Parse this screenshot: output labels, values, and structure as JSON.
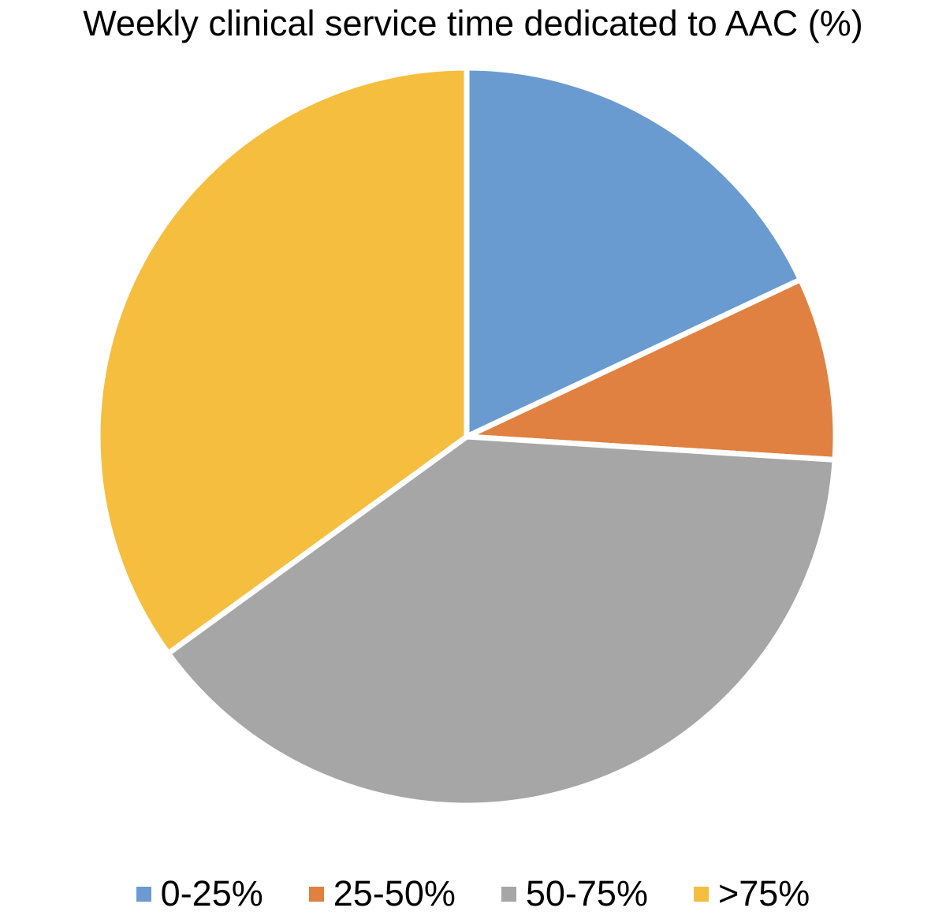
{
  "chart_data": {
    "type": "pie",
    "title": "Weekly clinical service time dedicated to AAC (%)",
    "slices": [
      {
        "label": "0-25%",
        "value": 18,
        "color": "#6A9BD0"
      },
      {
        "label": "25-50%",
        "value": 8,
        "color": "#E08141"
      },
      {
        "label": "50-75%",
        "value": 39,
        "color": "#A6A6A6"
      },
      {
        "label": ">75%",
        "value": 35,
        "color": "#F5BE3E"
      }
    ],
    "start_angle_deg": 0,
    "direction": "clockwise",
    "legend_position": "bottom",
    "slice_border_color": "#FFFFFF"
  }
}
